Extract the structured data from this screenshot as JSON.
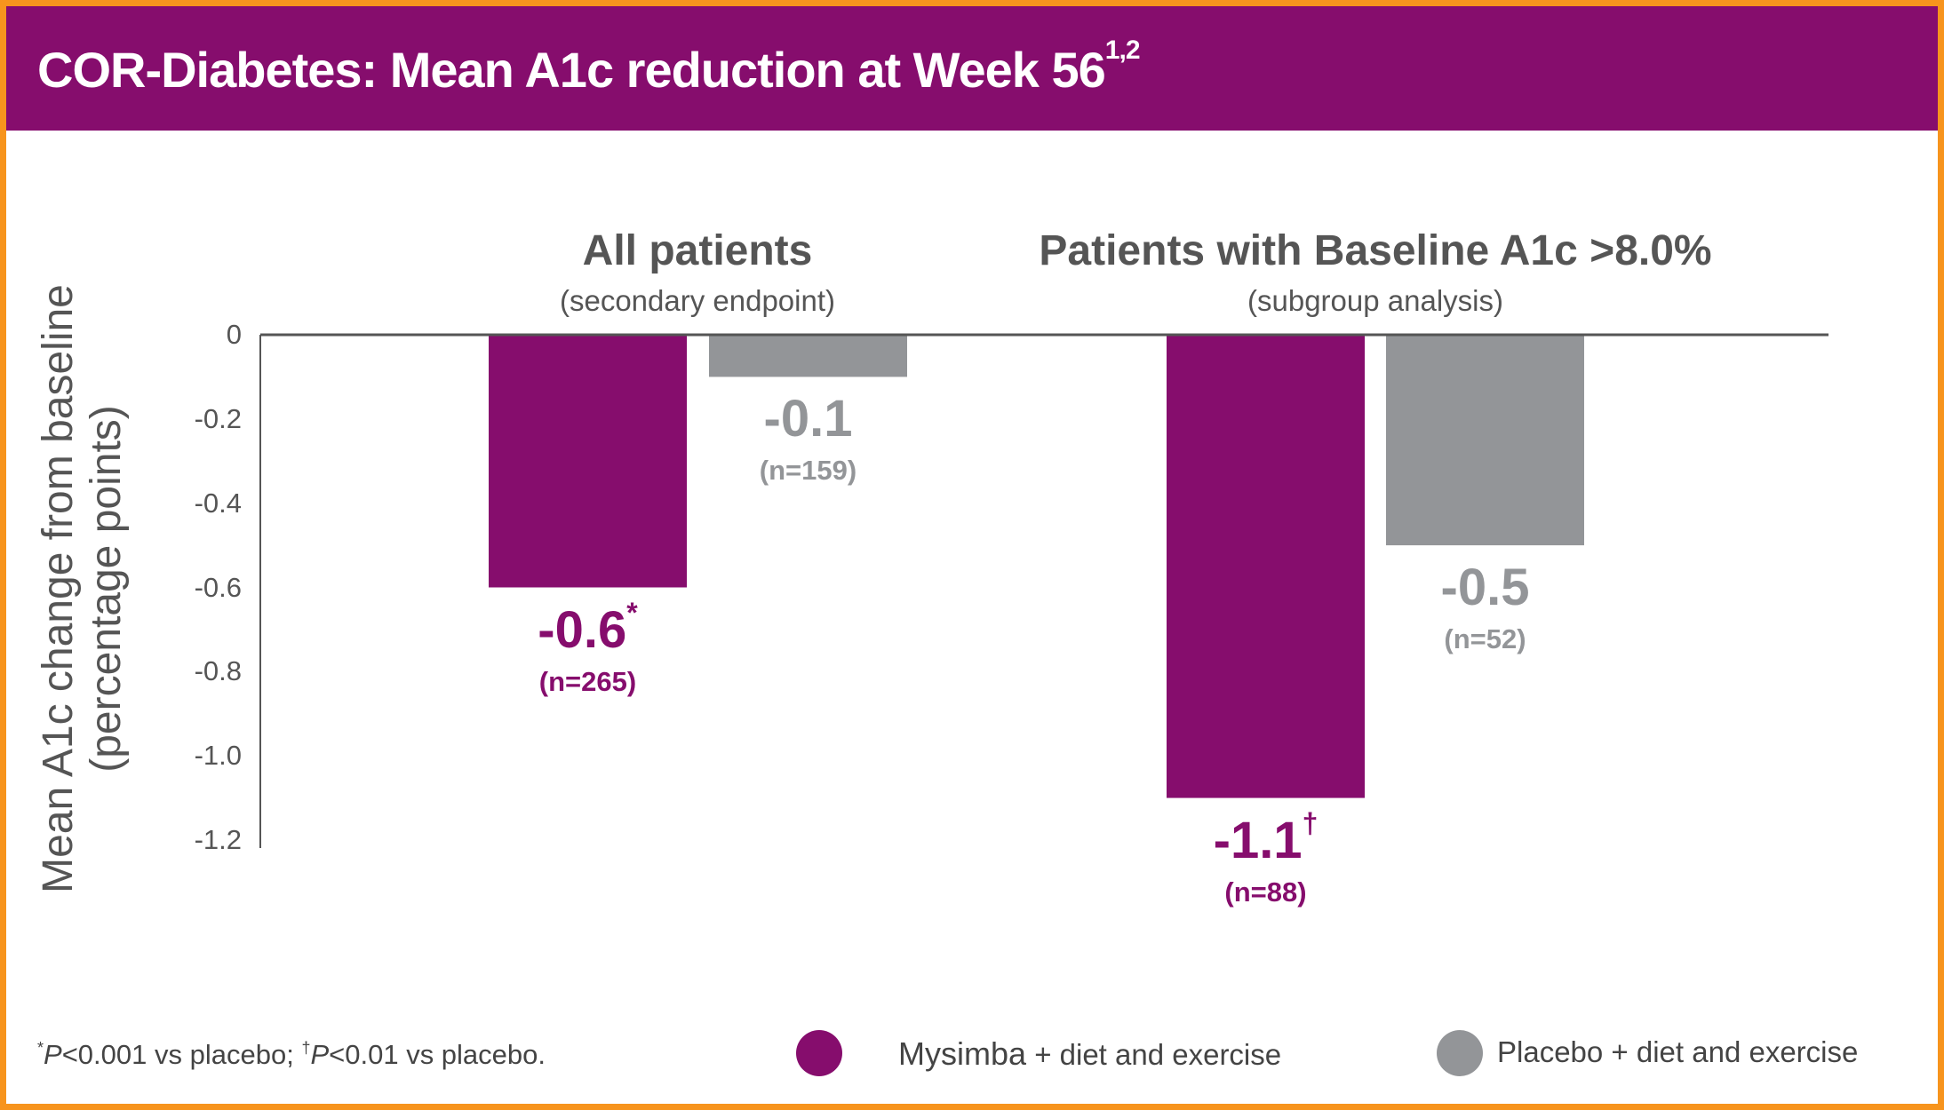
{
  "header": {
    "title": "COR-Diabetes: Mean A1c reduction at Week 56",
    "title_sup": "1,2"
  },
  "colors": {
    "mysimba": "#860d6d",
    "placebo": "#939598",
    "border": "#f7941d",
    "axis": "#555555"
  },
  "chart_data": {
    "type": "bar",
    "title": "COR-Diabetes: Mean A1c reduction at Week 56",
    "ylabel": [
      "Mean A1c change from baseline",
      "(percentage points)"
    ],
    "ylim": [
      -1.2,
      0
    ],
    "yticks": [
      "0",
      "-0.2",
      "-0.4",
      "-0.6",
      "-0.8",
      "-1.0",
      "-1.2"
    ],
    "ytick_values": [
      0,
      -0.2,
      -0.4,
      -0.6,
      -0.8,
      -1.0,
      -1.2
    ],
    "groups": [
      {
        "title": "All patients",
        "subtitle": "(secondary endpoint)"
      },
      {
        "title": "Patients with Baseline A1c >8.0%",
        "subtitle": "(subgroup analysis)"
      }
    ],
    "series": [
      {
        "name": "Mysimba + diet and exercise",
        "values": [
          -0.6,
          -1.1
        ],
        "labels": [
          "-0.6",
          "-1.1"
        ],
        "marks": [
          "*",
          "†"
        ],
        "n": [
          "(n=265)",
          "(n=88)"
        ]
      },
      {
        "name": "Placebo + diet and exercise",
        "values": [
          -0.1,
          -0.5
        ],
        "labels": [
          "-0.1",
          "-0.5"
        ],
        "marks": [
          "",
          ""
        ],
        "n": [
          "(n=159)",
          "(n=52)"
        ]
      }
    ],
    "legend": {
      "placement": "bottom",
      "mysimba_brand": "Mysimba",
      "mysimba_rest": " + diet and exercise",
      "placebo": "Placebo + diet and exercise"
    }
  },
  "footnote": {
    "m1": "*",
    "p1": "P",
    "t1": "<0.001 vs placebo; ",
    "m2": "†",
    "p2": "P",
    "t2": "<0.01 vs placebo."
  }
}
